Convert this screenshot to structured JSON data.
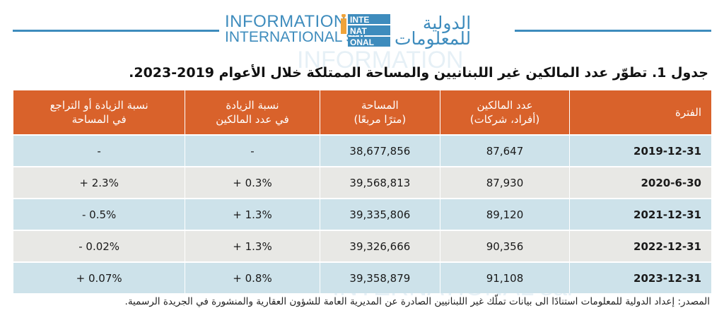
{
  "logo": {
    "en_line1": "INFORMATION",
    "en_line2": "INTERNATIONAL sal",
    "mark_top": "INTE",
    "mark_mid": "NAT",
    "mark_bot": "ONAL",
    "ar_line1": "الدولية",
    "ar_line2": "للمعلومات"
  },
  "title": "جدول 1. تطوّر عدد المالكين غير اللبنانيين والمساحة الممتلكة خلال الأعوام 2019-2023.",
  "table": {
    "headers": [
      {
        "line1": "الفترة",
        "line2": ""
      },
      {
        "line1": "عدد المالكين",
        "line2": "(أفراد، شركات)"
      },
      {
        "line1": "المساحة",
        "line2": "(مترًا مربعًا)"
      },
      {
        "line1": "نسبة الزيادة",
        "line2": "في عدد المالكين"
      },
      {
        "line1": "نسبة الزيادة أو التراجع",
        "line2": "في المساحة"
      }
    ],
    "rows": [
      {
        "period": "2019-12-31",
        "owners": "87,647",
        "area": "38,677,856",
        "owners_change": "-",
        "area_change": "-"
      },
      {
        "period": "2020-6-30",
        "owners": "87,930",
        "area": "39,568,813",
        "owners_change": "+ 0.3%",
        "area_change": "+ 2.3%"
      },
      {
        "period": "2021-12-31",
        "owners": "89,120",
        "area": "39,335,806",
        "owners_change": "+ 1.3%",
        "area_change": "- 0.5%"
      },
      {
        "period": "2022-12-31",
        "owners": "90,356",
        "area": "39,326,666",
        "owners_change": "+ 1.3%",
        "area_change": "- 0.02%"
      },
      {
        "period": "2023-12-31",
        "owners": "91,108",
        "area": "39,358,879",
        "owners_change": "+ 0.8%",
        "area_change": "+ 0.07%"
      }
    ]
  },
  "source": "المصدر: إعداد الدولية للمعلومات استنادًا الى بيانات تملّك غير اللبنانيين الصادرة عن المديرية العامة للشؤون العقارية والمنشورة في الجريدة الرسمية.",
  "colors": {
    "header_bg": "#d9622b",
    "row_blue": "#cde2ea",
    "row_gray": "#e8e8e5",
    "brand_blue": "#3e8cbd",
    "brand_orange": "#f0a33a"
  }
}
